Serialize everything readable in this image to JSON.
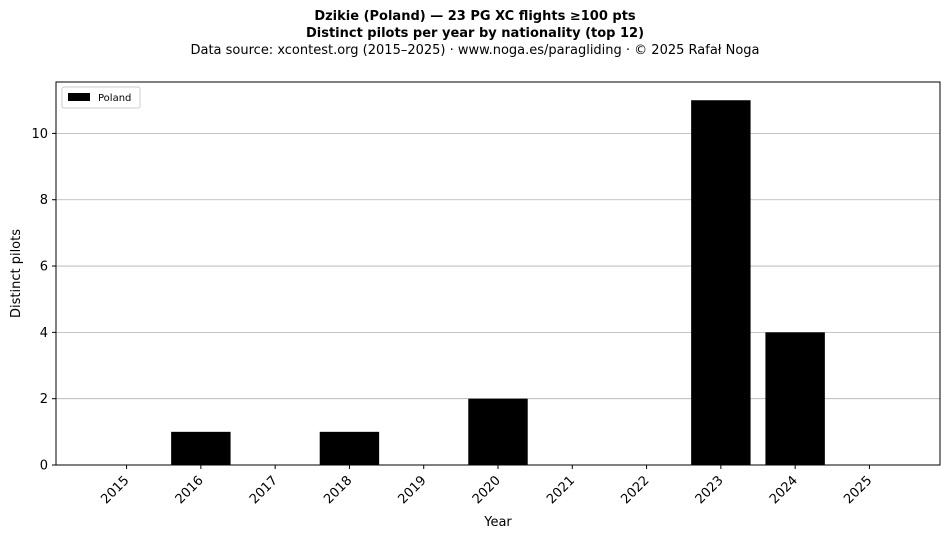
{
  "header": {
    "title_line1": "Dzikie (Poland)  —  23 PG XC flights ≥100 pts",
    "title_line2": "Distinct pilots per year by nationality (top 12)",
    "subtitle": "Data source: xcontest.org (2015–2025)  ·  www.noga.es/paragliding  ·  © 2025 Rafał Noga"
  },
  "chart_data": {
    "type": "bar",
    "title": "Dzikie (Poland)  —  23 PG XC flights ≥100 pts\nDistinct pilots per year by nationality (top 12)",
    "subtitle": "Data source: xcontest.org (2015–2025)  ·  www.noga.es/paragliding  ·  © 2025 Rafał Noga",
    "xlabel": "Year",
    "ylabel": "Distinct pilots",
    "categories": [
      "2015",
      "2016",
      "2017",
      "2018",
      "2019",
      "2020",
      "2021",
      "2022",
      "2023",
      "2024",
      "2025"
    ],
    "series": [
      {
        "name": "Poland",
        "color": "#000000",
        "values": [
          0,
          1,
          0,
          1,
          0,
          2,
          0,
          0,
          11,
          4,
          0
        ]
      }
    ],
    "ylim": [
      0,
      11.55
    ],
    "yticks": [
      0,
      2,
      4,
      6,
      8,
      10
    ],
    "grid": "horizontal",
    "legend_position": "upper-left"
  }
}
